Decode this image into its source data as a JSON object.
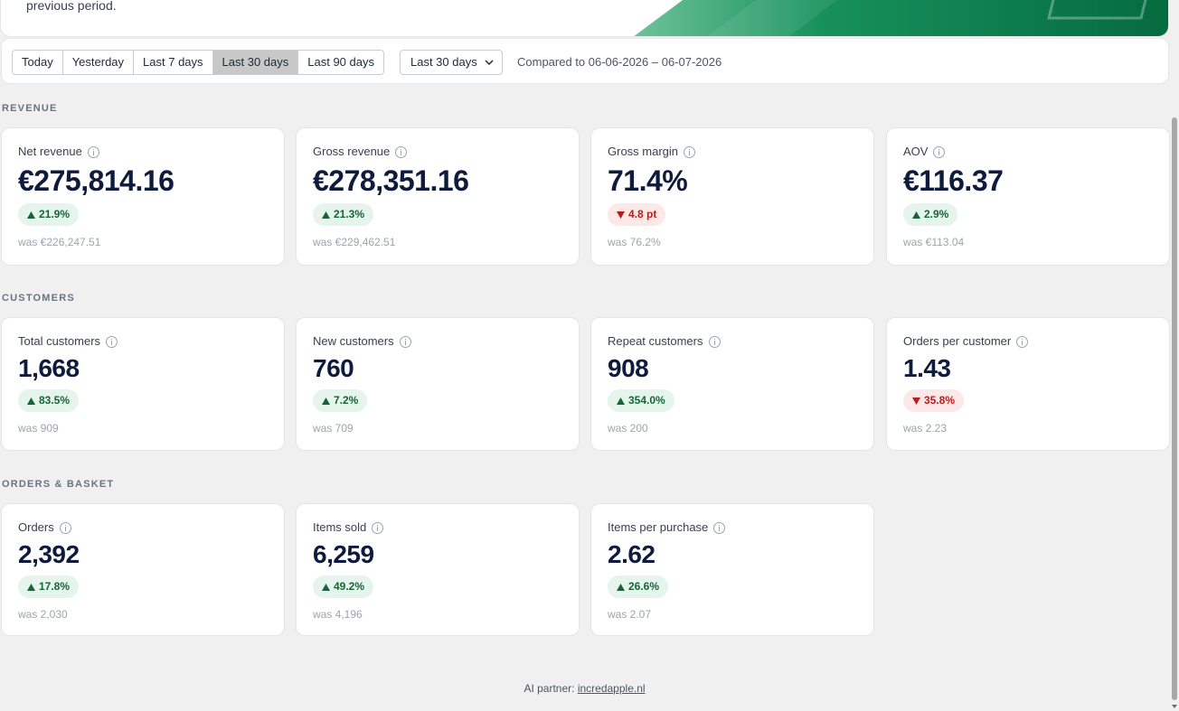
{
  "banner": {
    "subtitle": "previous period."
  },
  "filters": {
    "ranges": [
      {
        "label": "Today",
        "active": false
      },
      {
        "label": "Yesterday",
        "active": false
      },
      {
        "label": "Last 7 days",
        "active": false
      },
      {
        "label": "Last 30 days",
        "active": true
      },
      {
        "label": "Last 90 days",
        "active": false
      }
    ],
    "dropdown_value": "Last 30 days",
    "compared_text": "Compared to 06-06-2026 – 06-07-2026"
  },
  "sections": {
    "revenue": {
      "title": "REVENUE",
      "cards": [
        {
          "label": "Net revenue",
          "value": "€275,814.16",
          "change": "21.9%",
          "direction": "up",
          "was": "was €226,247.51"
        },
        {
          "label": "Gross revenue",
          "value": "€278,351.16",
          "change": "21.3%",
          "direction": "up",
          "was": "was €229,462.51"
        },
        {
          "label": "Gross margin",
          "value": "71.4%",
          "change": "4.8 pt",
          "direction": "down",
          "was": "was 76.2%"
        },
        {
          "label": "AOV",
          "value": "€116.37",
          "change": "2.9%",
          "direction": "up",
          "was": "was €113.04"
        }
      ]
    },
    "customers": {
      "title": "CUSTOMERS",
      "cards": [
        {
          "label": "Total customers",
          "value": "1,668",
          "change": "83.5%",
          "direction": "up",
          "was": "was 909"
        },
        {
          "label": "New customers",
          "value": "760",
          "change": "7.2%",
          "direction": "up",
          "was": "was 709"
        },
        {
          "label": "Repeat customers",
          "value": "908",
          "change": "354.0%",
          "direction": "up",
          "was": "was 200"
        },
        {
          "label": "Orders per customer",
          "value": "1.43",
          "change": "35.8%",
          "direction": "down",
          "was": "was 2.23"
        }
      ]
    },
    "orders": {
      "title": "ORDERS & BASKET",
      "cards": [
        {
          "label": "Orders",
          "value": "2,392",
          "change": "17.8%",
          "direction": "up",
          "was": "was 2,030"
        },
        {
          "label": "Items sold",
          "value": "6,259",
          "change": "49.2%",
          "direction": "up",
          "was": "was 4,196"
        },
        {
          "label": "Items per purchase",
          "value": "2.62",
          "change": "26.6%",
          "direction": "up",
          "was": "was 2.07"
        }
      ]
    }
  },
  "footer": {
    "prefix": "AI partner: ",
    "link": "incredapple.nl"
  },
  "colors": {
    "accent_green": "#0b7a4b",
    "up_bg": "#e5f4ec",
    "up_text": "#166534",
    "down_bg": "#fde8e8",
    "down_text": "#b91c1c"
  }
}
